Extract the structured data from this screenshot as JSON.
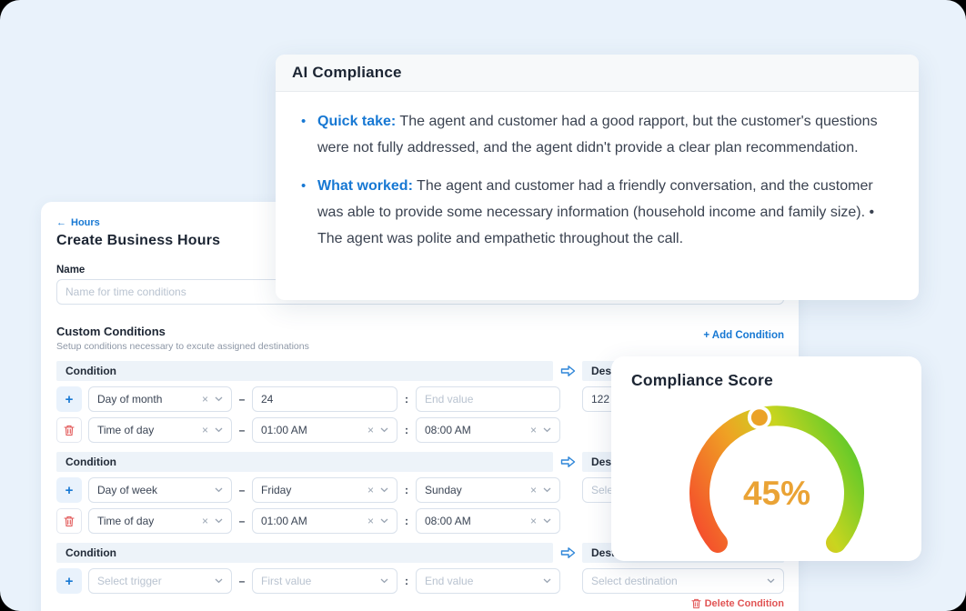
{
  "colors": {
    "background": "#e9f2fb",
    "accent_blue": "#1778d3",
    "danger_red": "#e15454",
    "heading_navy": "#1c2533",
    "gauge_gradient": [
      "#f4502c",
      "#efa224",
      "#c9d51f",
      "#57c82b"
    ],
    "gauge_value_amber": "#eaa335"
  },
  "icons": {
    "back_arrow": "←",
    "plus": "+",
    "clear": "×",
    "bullet": "•"
  },
  "ai_compliance": {
    "title": "AI Compliance",
    "bullets": [
      {
        "label": "Quick take:",
        "text": "The agent and customer had a good rapport, but the customer's questions were not fully addressed, and the agent didn't provide a clear plan recommendation."
      },
      {
        "label": "What worked:",
        "text": "The agent and customer had a friendly conversation, and the customer was able to provide some necessary information (household income and family size). • The agent was polite and empathetic throughout the call."
      }
    ]
  },
  "compliance_score": {
    "title": "Compliance Score",
    "value": 45,
    "value_label": "45%"
  },
  "chart_data": {
    "type": "gauge",
    "title": "Compliance Score",
    "value": 45,
    "min": 0,
    "max": 100,
    "label": "45%",
    "color_scale": [
      "#f4502c",
      "#efa224",
      "#c9d51f",
      "#57c82b"
    ]
  },
  "form": {
    "back_label": "Hours",
    "title": "Create Business Hours",
    "name_label": "Name",
    "name_placeholder": "Name for time conditions",
    "separators": {
      "dash": "–",
      "colon": ":"
    },
    "section": {
      "title": "Custom Conditions",
      "subtitle": "Setup conditions necessary to excute assigned destinations",
      "add_condition": "+ Add Condition",
      "delete_condition": "Delete Condition"
    },
    "headers": {
      "condition": "Condition",
      "destination": "Destination"
    },
    "blocks": [
      {
        "rows": [
          {
            "f1": {
              "value": "Day of month"
            },
            "f2": {
              "value": "24"
            },
            "f3": {
              "placeholder": "End value"
            },
            "dest": {
              "value": "122"
            }
          },
          {
            "f1": {
              "value": "Time of day"
            },
            "f2": {
              "value": "01:00 AM"
            },
            "f3": {
              "value": "08:00 AM"
            }
          }
        ]
      },
      {
        "rows": [
          {
            "f1": {
              "value": "Day of week"
            },
            "f2": {
              "value": "Friday"
            },
            "f3": {
              "value": "Sunday"
            },
            "dest": {
              "placeholder": "Select destination"
            }
          },
          {
            "f1": {
              "value": "Time of day"
            },
            "f2": {
              "value": "01:00 AM"
            },
            "f3": {
              "value": "08:00 AM"
            }
          }
        ]
      },
      {
        "rows": [
          {
            "f1": {
              "placeholder": "Select trigger"
            },
            "f2": {
              "placeholder": "First value"
            },
            "f3": {
              "placeholder": "End value"
            },
            "dest": {
              "placeholder": "Select destination"
            }
          }
        ]
      }
    ]
  }
}
